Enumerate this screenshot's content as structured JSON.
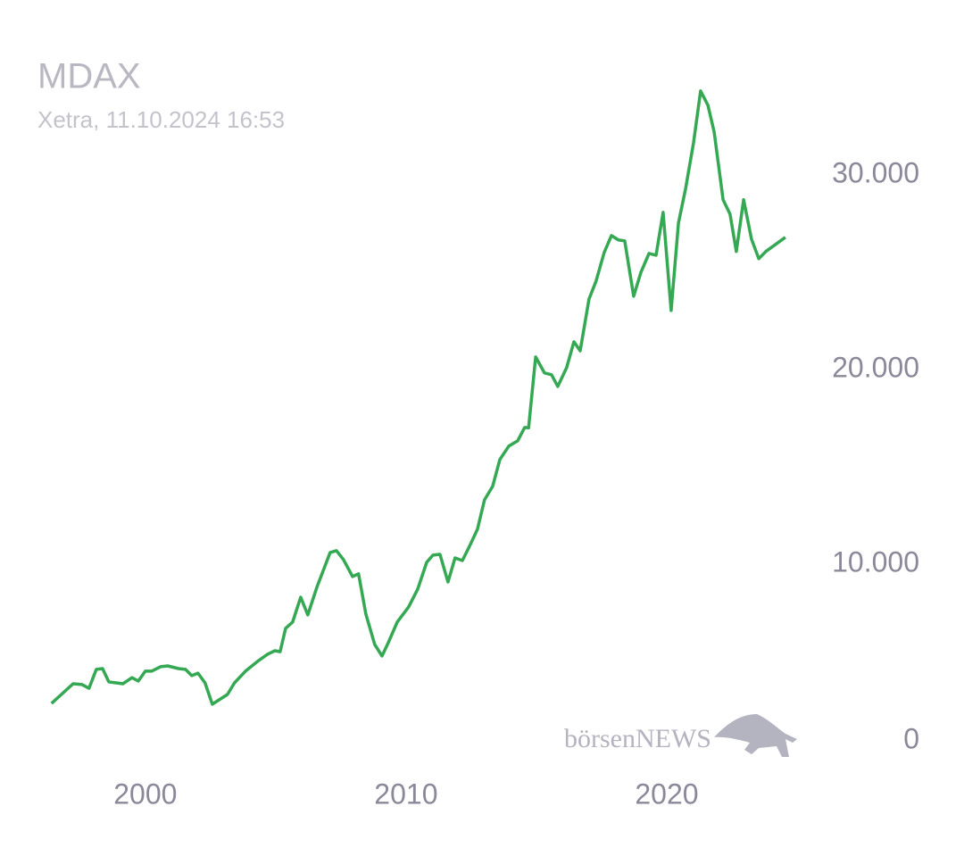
{
  "chart_data": {
    "type": "line",
    "title": "MDAX",
    "subtitle": "Xetra, 11.10.2024 16:53",
    "watermark": "börsenNEWS",
    "x": [
      1996.4,
      1997.23,
      1997.57,
      1997.84,
      1998.12,
      1998.36,
      1998.6,
      1999.14,
      1999.49,
      1999.73,
      2000.0,
      2000.24,
      2000.58,
      2000.86,
      2001.27,
      2001.54,
      2001.78,
      2002.02,
      2002.29,
      2002.57,
      2003.15,
      2003.42,
      2003.84,
      2004.35,
      2004.69,
      2004.97,
      2005.17,
      2005.38,
      2005.65,
      2005.96,
      2006.23,
      2006.58,
      2007.09,
      2007.33,
      2007.6,
      2007.95,
      2008.18,
      2008.46,
      2008.8,
      2009.08,
      2009.32,
      2009.66,
      2010.1,
      2010.45,
      2010.79,
      2011.03,
      2011.3,
      2011.61,
      2011.88,
      2012.16,
      2012.47,
      2012.74,
      2013.01,
      2013.32,
      2013.6,
      2013.94,
      2014.28,
      2014.55,
      2014.7,
      2014.97,
      2015.31,
      2015.58,
      2015.82,
      2016.16,
      2016.44,
      2016.68,
      2017.02,
      2017.29,
      2017.6,
      2017.88,
      2018.15,
      2018.39,
      2018.73,
      2019.01,
      2019.32,
      2019.59,
      2019.86,
      2020.17,
      2020.45,
      2020.72,
      2021.03,
      2021.3,
      2021.58,
      2021.82,
      2022.16,
      2022.43,
      2022.67,
      2022.95,
      2023.25,
      2023.53,
      2023.8,
      2024.55
    ],
    "series": [
      {
        "name": "MDAX",
        "color": "#34a853",
        "values": [
          2840,
          3850,
          3810,
          3620,
          4590,
          4630,
          3950,
          3850,
          4170,
          3990,
          4500,
          4500,
          4730,
          4770,
          4630,
          4590,
          4270,
          4400,
          3900,
          2800,
          3300,
          3900,
          4500,
          5050,
          5370,
          5550,
          5500,
          6700,
          7020,
          8300,
          7390,
          8810,
          10600,
          10690,
          10230,
          9360,
          9500,
          7430,
          5870,
          5280,
          5960,
          7020,
          7800,
          8720,
          10090,
          10460,
          10500,
          9080,
          10320,
          10180,
          11010,
          11790,
          13300,
          13990,
          15370,
          16060,
          16330,
          17020,
          17000,
          20640,
          19820,
          19730,
          19130,
          20090,
          21420,
          20960,
          23620,
          24540,
          26010,
          26880,
          26650,
          26610,
          23760,
          25000,
          25960,
          25870,
          28070,
          23030,
          27520,
          29270,
          31650,
          34310,
          33580,
          32200,
          28720,
          27980,
          26060,
          28720,
          26700,
          25690,
          26060,
          26790
        ]
      }
    ],
    "xlim": [
      1996,
      2025
    ],
    "xticks": [
      2000,
      2010,
      2020
    ],
    "ylim": [
      0,
      36000
    ],
    "yticks": [
      0,
      {
        "value": 10000,
        "label": "10.000"
      },
      {
        "value": 20000,
        "label": "20.000"
      },
      {
        "value": 30000,
        "label": "30.000"
      }
    ]
  }
}
